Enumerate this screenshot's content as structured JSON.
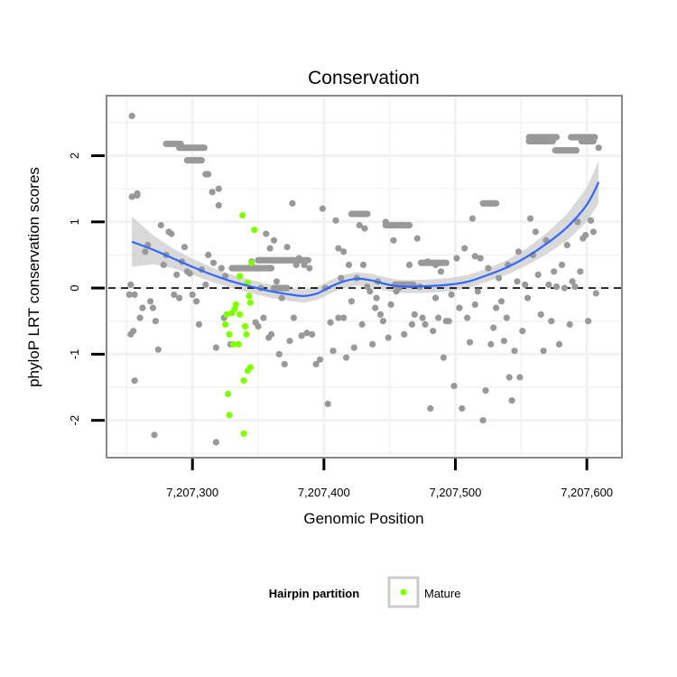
{
  "chart_data": {
    "type": "scatter",
    "title": "Conservation",
    "xlabel": "Genomic Position",
    "ylabel": "phyloP LRT conservation scores",
    "xlim": [
      7207236,
      7207626
    ],
    "ylim": [
      -2.55,
      2.88
    ],
    "x_ticks": [
      7207300,
      7207400,
      7207500,
      7207600
    ],
    "x_tick_labels": [
      "7,207,300",
      "7,207,400",
      "7,207,500",
      "7,207,600"
    ],
    "y_ticks": [
      -2,
      -1,
      0,
      1,
      2
    ],
    "y_tick_labels": [
      "-2",
      "-1",
      "0",
      "1",
      "2"
    ],
    "grid": true,
    "reference_line": {
      "y": 0,
      "style": "dashed"
    },
    "legend": {
      "title": "Hairpin partition",
      "position": "bottom",
      "entries": [
        {
          "label": "Mature",
          "color": "#80ff00"
        }
      ]
    },
    "colors": {
      "background_points": "#999999",
      "mature_points": "#80ff00",
      "smooth_line": "#3366ff",
      "confidence_band": "#cccccc"
    },
    "series": [
      {
        "role": "background",
        "points": [
          [
            7207254,
            2.6
          ],
          [
            7207254,
            1.38
          ],
          [
            7207258,
            1.4
          ],
          [
            7207258,
            1.43
          ],
          [
            7207253,
            0.05
          ],
          [
            7207252,
            -0.1
          ],
          [
            7207256,
            -0.1
          ],
          [
            7207253,
            -0.7
          ],
          [
            7207255,
            -0.65
          ],
          [
            7207256,
            -1.4
          ],
          [
            7207260,
            -0.45
          ],
          [
            7207262,
            -0.3
          ],
          [
            7207264,
            0.55
          ],
          [
            7207266,
            0.65
          ],
          [
            7207268,
            -0.2
          ],
          [
            7207270,
            -0.3
          ],
          [
            7207272,
            -0.5
          ],
          [
            7207271,
            -2.22
          ],
          [
            7207274,
            -0.93
          ],
          [
            7207276,
            0.95
          ],
          [
            7207278,
            0.35
          ],
          [
            7207280,
            0.5
          ],
          [
            7207282,
            0.85
          ],
          [
            7207284,
            0.82
          ],
          [
            7207286,
            -0.1
          ],
          [
            7207288,
            0.2
          ],
          [
            7207290,
            -0.15
          ],
          [
            7207292,
            0.4
          ],
          [
            7207294,
            0.62
          ],
          [
            7207296,
            0.25
          ],
          [
            7207298,
            0.22
          ],
          [
            7207300,
            -0.1
          ],
          [
            7207303,
            -0.2
          ],
          [
            7207305,
            -0.55
          ],
          [
            7207307,
            0.28
          ],
          [
            7207310,
            0.05
          ],
          [
            7207312,
            0.5
          ],
          [
            7207315,
            1.45
          ],
          [
            7207316,
            0.38
          ],
          [
            7207318,
            -0.9
          ],
          [
            7207318,
            -2.33
          ],
          [
            7207320,
            1.5
          ],
          [
            7207322,
            0.3
          ],
          [
            7207324,
            -0.45
          ],
          [
            7207329,
            -0.85
          ],
          [
            7207345,
            0.4
          ],
          [
            7207348,
            -0.52
          ],
          [
            7207350,
            -0.58
          ],
          [
            7207352,
            0.0
          ],
          [
            7207354,
            -0.45
          ],
          [
            7207356,
            0.82
          ],
          [
            7207358,
            -0.75
          ],
          [
            7207359,
            0.6
          ],
          [
            7207360,
            -0.7
          ],
          [
            7207362,
            0.72
          ],
          [
            7207364,
            0.1
          ],
          [
            7207366,
            -1.0
          ],
          [
            7207368,
            -0.15
          ],
          [
            7207370,
            -1.15
          ],
          [
            7207372,
            0.62
          ],
          [
            7207374,
            -0.8
          ],
          [
            7207376,
            1.28
          ],
          [
            7207377,
            -0.45
          ],
          [
            7207379,
            0.35
          ],
          [
            7207381,
            0.45
          ],
          [
            7207383,
            -0.72
          ],
          [
            7207385,
            0.35
          ],
          [
            7207387,
            -0.68
          ],
          [
            7207389,
            0.3
          ],
          [
            7207391,
            -0.7
          ],
          [
            7207394,
            -1.15
          ],
          [
            7207397,
            -1.08
          ],
          [
            7207399,
            1.2
          ],
          [
            7207401,
            0.0
          ],
          [
            7207403,
            -1.75
          ],
          [
            7207405,
            -0.52
          ],
          [
            7207407,
            -0.95
          ],
          [
            7207409,
            1.02
          ],
          [
            7207411,
            0.6
          ],
          [
            7207413,
            0.15
          ],
          [
            7207415,
            -0.45
          ],
          [
            7207417,
            -1.05
          ],
          [
            7207419,
            0.35
          ],
          [
            7207421,
            -0.2
          ],
          [
            7207423,
            -0.9
          ],
          [
            7207425,
            0.15
          ],
          [
            7207427,
            0.95
          ],
          [
            7207429,
            -0.55
          ],
          [
            7207431,
            0.9
          ],
          [
            7207433,
            0.02
          ],
          [
            7207435,
            -0.05
          ],
          [
            7207437,
            -0.85
          ],
          [
            7207439,
            -0.3
          ],
          [
            7207441,
            0.1
          ],
          [
            7207443,
            -0.4
          ],
          [
            7207445,
            -0.5
          ],
          [
            7207447,
            1.0
          ],
          [
            7207449,
            -0.75
          ],
          [
            7207451,
            -0.25
          ],
          [
            7207453,
            0.72
          ],
          [
            7207455,
            -0.05
          ],
          [
            7207457,
            0.0
          ],
          [
            7207459,
            0.05
          ],
          [
            7207461,
            -0.7
          ],
          [
            7207463,
            0.95
          ],
          [
            7207465,
            0.35
          ],
          [
            7207467,
            -0.55
          ],
          [
            7207469,
            -0.4
          ],
          [
            7207471,
            0.75
          ],
          [
            7207473,
            0.02
          ],
          [
            7207475,
            -0.45
          ],
          [
            7207477,
            -0.55
          ],
          [
            7207479,
            0.4
          ],
          [
            7207481,
            -1.82
          ],
          [
            7207483,
            -0.65
          ],
          [
            7207485,
            -0.15
          ],
          [
            7207487,
            -0.45
          ],
          [
            7207489,
            0.25
          ],
          [
            7207491,
            -1.05
          ],
          [
            7207493,
            -0.5
          ],
          [
            7207495,
            -0.5
          ],
          [
            7207497,
            -0.1
          ],
          [
            7207499,
            -1.48
          ],
          [
            7207501,
            0.45
          ],
          [
            7207503,
            -0.3
          ],
          [
            7207505,
            -1.82
          ],
          [
            7207507,
            0.6
          ],
          [
            7207509,
            -0.45
          ],
          [
            7207511,
            -0.82
          ],
          [
            7207513,
            1.05
          ],
          [
            7207515,
            -0.25
          ],
          [
            7207517,
            -0.05
          ],
          [
            7207519,
            0.45
          ],
          [
            7207521,
            -2.0
          ],
          [
            7207523,
            -1.55
          ],
          [
            7207525,
            0.3
          ],
          [
            7207527,
            -0.85
          ],
          [
            7207529,
            -0.6
          ],
          [
            7207531,
            -0.3
          ],
          [
            7207533,
            0.15
          ],
          [
            7207535,
            -0.2
          ],
          [
            7207537,
            -0.8
          ],
          [
            7207539,
            -0.45
          ],
          [
            7207541,
            -1.35
          ],
          [
            7207543,
            -1.7
          ],
          [
            7207545,
            -0.95
          ],
          [
            7207547,
            0.1
          ],
          [
            7207549,
            -1.35
          ],
          [
            7207551,
            -0.65
          ],
          [
            7207553,
            0.05
          ],
          [
            7207555,
            -0.15
          ],
          [
            7207557,
            1.05
          ],
          [
            7207559,
            0.5
          ],
          [
            7207561,
            0.85
          ],
          [
            7207563,
            0.2
          ],
          [
            7207565,
            -0.4
          ],
          [
            7207567,
            -0.95
          ],
          [
            7207569,
            0.72
          ],
          [
            7207571,
            0.05
          ],
          [
            7207573,
            -0.5
          ],
          [
            7207575,
            0.25
          ],
          [
            7207577,
            0.02
          ],
          [
            7207579,
            -0.85
          ],
          [
            7207581,
            0.35
          ],
          [
            7207583,
            0.0
          ],
          [
            7207585,
            0.65
          ],
          [
            7207587,
            -0.55
          ],
          [
            7207589,
            0.1
          ],
          [
            7207591,
            0.02
          ],
          [
            7207593,
            1.0
          ],
          [
            7207595,
            0.25
          ],
          [
            7207597,
            0.75
          ],
          [
            7207599,
            0.8
          ],
          [
            7207601,
            -0.5
          ],
          [
            7207603,
            1.02
          ],
          [
            7207605,
            0.85
          ],
          [
            7207607,
            -0.08
          ],
          [
            7207609,
            2.12
          ],
          [
            7207320,
            1.25
          ],
          [
            7207325,
            0.18
          ],
          [
            7207411,
            -0.45
          ],
          [
            7207415,
            0.55
          ],
          [
            7207440,
            -0.15
          ],
          [
            7207485,
            0.35
          ],
          [
            7207515,
            0.48
          ],
          [
            7207540,
            0.35
          ],
          [
            7207548,
            0.55
          ],
          [
            7207430,
            0.35
          ]
        ],
        "runs": [
          {
            "y": 2.18,
            "x_start": 7207280,
            "x_end": 7207291
          },
          {
            "y": 2.12,
            "x_start": 7207290,
            "x_end": 7207309
          },
          {
            "y": 1.93,
            "x_start": 7207296,
            "x_end": 7207307
          },
          {
            "y": 1.72,
            "x_start": 7207310,
            "x_end": 7207312
          },
          {
            "y": 1.12,
            "x_start": 7207421,
            "x_end": 7207433
          },
          {
            "y": 0.95,
            "x_start": 7207447,
            "x_end": 7207465
          },
          {
            "y": 0.38,
            "x_start": 7207474,
            "x_end": 7207493
          },
          {
            "y": 1.28,
            "x_start": 7207521,
            "x_end": 7207531
          },
          {
            "y": 2.28,
            "x_start": 7207556,
            "x_end": 7207577
          },
          {
            "y": 2.22,
            "x_start": 7207556,
            "x_end": 7207574
          },
          {
            "y": 2.08,
            "x_start": 7207576,
            "x_end": 7207592
          },
          {
            "y": 2.28,
            "x_start": 7207588,
            "x_end": 7207606
          },
          {
            "y": 2.22,
            "x_start": 7207596,
            "x_end": 7207605
          },
          {
            "y": 0.42,
            "x_start": 7207350,
            "x_end": 7207388
          },
          {
            "y": 0.3,
            "x_start": 7207330,
            "x_end": 7207360
          },
          {
            "y": 0.0,
            "x_start": 7207362,
            "x_end": 7207372
          },
          {
            "y": 0.05,
            "x_start": 7207454,
            "x_end": 7207468
          }
        ]
      },
      {
        "name": "Mature",
        "points": [
          [
            7207338,
            1.1
          ],
          [
            7207347,
            0.88
          ],
          [
            7207342,
            0.08
          ],
          [
            7207336,
            0.18
          ],
          [
            7207345,
            0.38
          ],
          [
            7207343,
            -0.12
          ],
          [
            7207344,
            -0.22
          ],
          [
            7207333,
            -0.25
          ],
          [
            7207332,
            -0.32
          ],
          [
            7207330,
            -0.38
          ],
          [
            7207336,
            -0.4
          ],
          [
            7207326,
            -0.4
          ],
          [
            7207325,
            -0.55
          ],
          [
            7207340,
            -0.58
          ],
          [
            7207341,
            -0.7
          ],
          [
            7207328,
            -0.7
          ],
          [
            7207335,
            -0.85
          ],
          [
            7207331,
            -0.85
          ],
          [
            7207344,
            -1.2
          ],
          [
            7207342,
            -1.25
          ],
          [
            7207339,
            -1.4
          ],
          [
            7207327,
            -1.6
          ],
          [
            7207328,
            -1.92
          ],
          [
            7207339,
            -2.2
          ]
        ]
      }
    ],
    "smooth": {
      "x": [
        7207254,
        7207270,
        7207285,
        7207300,
        7207315,
        7207330,
        7207345,
        7207360,
        7207375,
        7207385,
        7207395,
        7207405,
        7207415,
        7207425,
        7207435,
        7207445,
        7207455,
        7207465,
        7207480,
        7207495,
        7207510,
        7207525,
        7207540,
        7207555,
        7207570,
        7207585,
        7207600,
        7207609
      ],
      "y": [
        0.7,
        0.58,
        0.45,
        0.32,
        0.2,
        0.1,
        0.02,
        -0.05,
        -0.1,
        -0.12,
        -0.08,
        0.02,
        0.1,
        0.14,
        0.12,
        0.07,
        0.03,
        0.02,
        0.03,
        0.05,
        0.1,
        0.2,
        0.32,
        0.48,
        0.68,
        0.92,
        1.26,
        1.6
      ],
      "band": [
        0.38,
        0.22,
        0.15,
        0.12,
        0.11,
        0.1,
        0.1,
        0.1,
        0.1,
        0.1,
        0.1,
        0.1,
        0.1,
        0.1,
        0.1,
        0.1,
        0.1,
        0.1,
        0.1,
        0.1,
        0.1,
        0.1,
        0.11,
        0.13,
        0.16,
        0.2,
        0.26,
        0.32
      ]
    }
  }
}
